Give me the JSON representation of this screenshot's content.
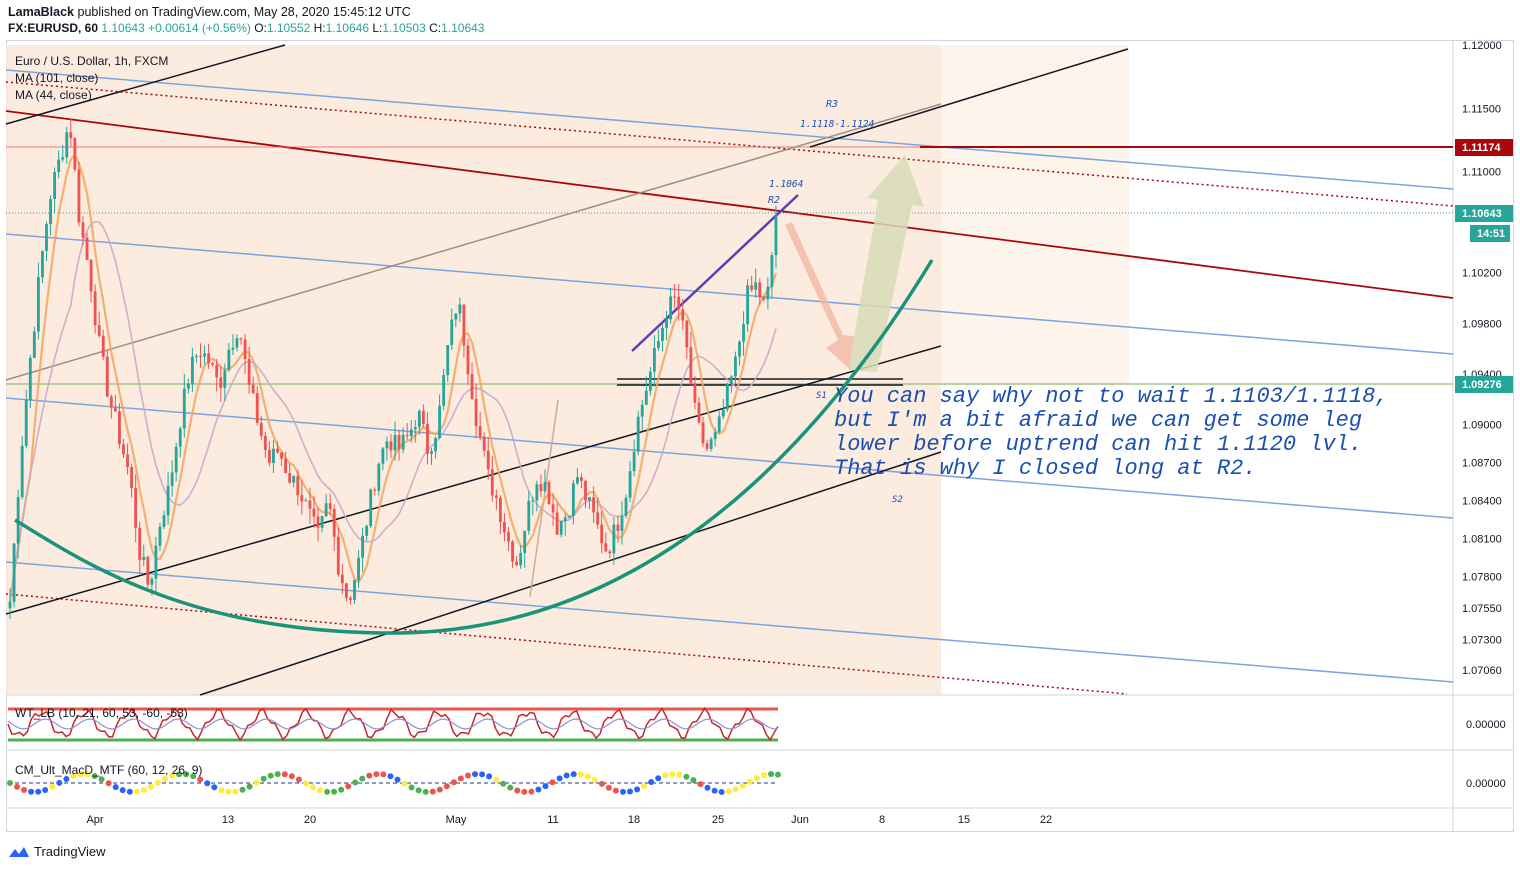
{
  "header": {
    "publisher": "LamaBlack",
    "published_text": "published on TradingView.com, May 28, 2020 15:45:12 UTC",
    "symbol": "FX:EURUSD, 60",
    "last": "1.10643",
    "change": "+0.00614 (+0.56%)",
    "o_label": "O:",
    "o": "1.10552",
    "h_label": "H:",
    "h": "1.10646",
    "l_label": "L:",
    "l": "1.10503",
    "c_label": "C:",
    "c": "1.10643"
  },
  "legend": {
    "instrument": "Euro / U.S. Dollar, 1h, FXCM",
    "ma1": "MA (101, close)",
    "ma2": "MA (44, close)",
    "osc1": "WT_LB (10, 21, 60, 53, -60, -53)",
    "osc2": "CM_Ult_MacD_MTF (60, 12, 26, 9)"
  },
  "annotation": {
    "line1": "You can say why not to wait 1.1103/1.1118,",
    "line2": "but I'm a bit afraid we can get some leg",
    "line3": "lower before uptrend can hit 1.1120 lvl.",
    "line4": "That is why I closed long at R2."
  },
  "footer": {
    "brand": "TradingView"
  },
  "colors": {
    "up": "#26a69a",
    "down": "#ef5350",
    "channel": "#7ba4e0",
    "dark_red": "#a8080c",
    "annotation": "#1a4fb0",
    "zone": "#fbe6d4",
    "purple": "#5a3fb5",
    "curve": "#1a9478",
    "ma_fast": "#f5a55f",
    "ma_slow": "#c9a9c9"
  },
  "chart_data": {
    "type": "candlestick",
    "title": "Euro / U.S. Dollar, 1h, FXCM",
    "y_ticks": [
      "1.12000",
      "1.11500",
      "1.11000",
      "1.10643",
      "1.10200",
      "1.09800",
      "1.09400",
      "1.09276",
      "1.09000",
      "1.08700",
      "1.08400",
      "1.08100",
      "1.07800",
      "1.07550",
      "1.07300",
      "1.07060"
    ],
    "ylim": [
      1.0687,
      1.1218
    ],
    "x_ticks": [
      "Apr",
      "13",
      "20",
      "May",
      "11",
      "18",
      "25",
      "Jun",
      "8",
      "15",
      "22"
    ],
    "price_tags": [
      {
        "label": "1.11174",
        "value": 1.11174,
        "color": "#a8080c"
      },
      {
        "label": "1.10643",
        "value": 1.10643,
        "color": "#26a69a"
      },
      {
        "label": "14:51",
        "value": 1.1052,
        "color": "#26a69a"
      },
      {
        "label": "1.09276",
        "value": 1.09276,
        "color": "#26a69a"
      }
    ],
    "levels": [
      {
        "label": "R3",
        "value": 1.1147
      },
      {
        "label": "1.1118-1.1124",
        "value": 1.113
      },
      {
        "label": "1.1064",
        "value": 1.1088
      },
      {
        "label": "R2",
        "value": 1.1073
      },
      {
        "label": "S1",
        "value": 1.0912
      },
      {
        "label": "S2",
        "value": 1.0847
      }
    ],
    "osc_ticks": [
      "0.00000",
      "0.00000"
    ],
    "close_path": [
      1.076,
      1.087,
      1.095,
      1.102,
      1.108,
      1.111,
      1.114,
      1.106,
      1.102,
      1.096,
      1.092,
      1.089,
      1.086,
      1.08,
      1.077,
      1.082,
      1.085,
      1.09,
      1.094,
      1.096,
      1.095,
      1.093,
      1.096,
      1.098,
      1.093,
      1.09,
      1.087,
      1.088,
      1.086,
      1.085,
      1.083,
      1.081,
      1.084,
      1.079,
      1.076,
      1.079,
      1.083,
      1.087,
      1.089,
      1.088,
      1.089,
      1.091,
      1.088,
      1.09,
      1.096,
      1.1,
      1.095,
      1.09,
      1.086,
      1.084,
      1.081,
      1.079,
      1.083,
      1.086,
      1.085,
      1.082,
      1.083,
      1.086,
      1.084,
      1.082,
      1.08,
      1.082,
      1.085,
      1.09,
      1.093,
      1.096,
      1.099,
      1.1,
      1.096,
      1.09,
      1.088,
      1.089,
      1.092,
      1.095,
      1.1,
      1.101,
      1.099,
      1.1064
    ]
  }
}
